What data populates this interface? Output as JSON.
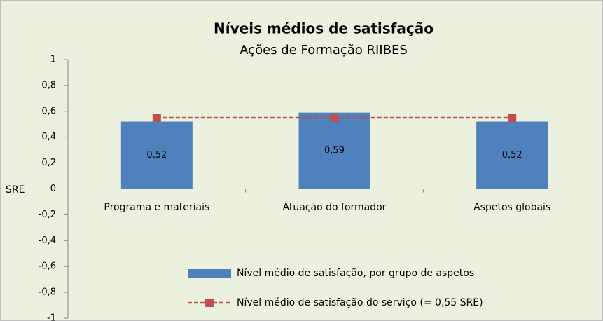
{
  "chart_data": {
    "type": "bar",
    "title": "Níveis médios de satisfação",
    "subtitle": "Ações de Formação RIIBES",
    "y_label": "SRE",
    "categories": [
      "Programa e materiais",
      "Atuação do formador",
      "Aspetos globais"
    ],
    "series": [
      {
        "name": "Nível médio de satisfação, por grupo de aspetos",
        "color": "#4f81bd",
        "values": [
          0.52,
          0.59,
          0.52
        ],
        "value_labels": [
          "0,52",
          "0,59",
          "0,52"
        ]
      },
      {
        "name": "Nível médio de satisfação do serviço (= 0,55 SRE)",
        "color": "#c0504d",
        "type": "line",
        "values": [
          0.55,
          0.55,
          0.55
        ]
      }
    ],
    "ylim": [
      -1,
      1
    ],
    "yticks": [
      -1,
      {
        "value": -0.8,
        "label": "-0,8"
      },
      {
        "value": -0.6,
        "label": "-0,6"
      },
      {
        "value": -0.4,
        "label": "-0,4"
      },
      {
        "value": -0.2,
        "label": "-0,2"
      },
      0,
      {
        "value": 0.2,
        "label": "0,2"
      },
      {
        "value": 0.4,
        "label": "0,4"
      },
      {
        "value": 0.6,
        "label": "0,6"
      },
      {
        "value": 0.8,
        "label": "0,8"
      },
      1
    ],
    "grid": false
  }
}
